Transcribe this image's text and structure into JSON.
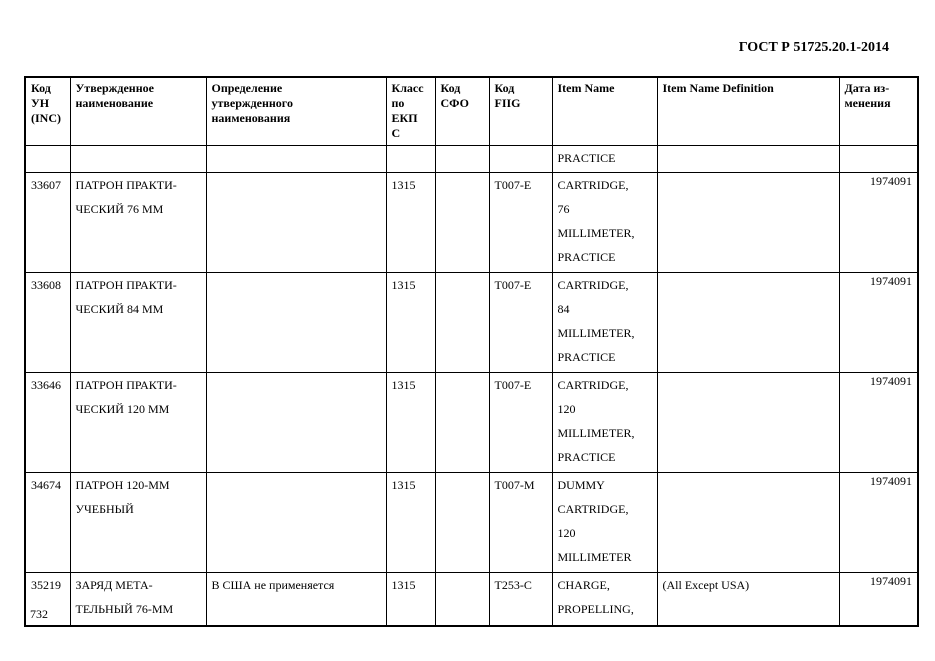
{
  "header": {
    "title": "ГОСТ Р 51725.20.1-2014"
  },
  "table": {
    "columns": [
      "Код\nУН\n(INC)",
      "Утвержденное\nнаименование",
      "Определение\nутвержденного\nнаименования",
      "Класс\nпо\nЕКП\nС",
      "Код\nСФО",
      "Код\nFIIG",
      "Item Name",
      "Item Name Definition",
      "Дата из-\nменения"
    ],
    "rows": [
      [
        "",
        "",
        "",
        "",
        "",
        "",
        "PRACTICE",
        "",
        ""
      ],
      [
        "33607",
        "ПАТРОН ПРАКТИ-\nЧЕСКИЙ 76 ММ",
        "",
        "1315",
        "",
        "T007-E",
        "CARTRIDGE,\n76\nMILLIMETER,\nPRACTICE",
        "",
        "1974091"
      ],
      [
        "33608",
        "ПАТРОН ПРАКТИ-\nЧЕСКИЙ 84 ММ",
        "",
        "1315",
        "",
        "T007-E",
        "CARTRIDGE,\n84\nMILLIMETER,\nPRACTICE",
        "",
        "1974091"
      ],
      [
        "33646",
        "ПАТРОН ПРАКТИ-\nЧЕСКИЙ 120 ММ",
        "",
        "1315",
        "",
        "T007-E",
        "CARTRIDGE,\n120\nMILLIMETER,\nPRACTICE",
        "",
        "1974091"
      ],
      [
        "34674",
        "ПАТРОН 120-ММ\nУЧЕБНЫЙ",
        "",
        "1315",
        "",
        "T007-M",
        "DUMMY\nCARTRIDGE,\n120\nMILLIMETER",
        "",
        "1974091"
      ],
      [
        "35219",
        "ЗАРЯД МЕТА-\nТЕЛЬНЫЙ 76-ММ",
        "В США не применяется",
        "1315",
        "",
        "T253-C",
        "CHARGE,\nPROPELLING,",
        "(All Except USA)",
        "1974091"
      ]
    ]
  },
  "footer": {
    "page_number": "732"
  }
}
